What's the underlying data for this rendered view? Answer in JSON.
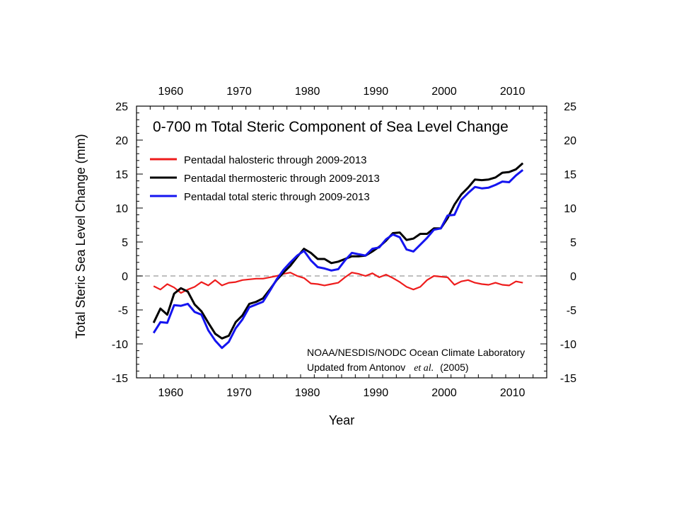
{
  "chart_data": {
    "type": "line",
    "title": "0-700 m Total Steric Component of Sea Level Change",
    "xlabel": "Year",
    "ylabel": "Total Steric Sea Level Change (mm)",
    "xlim": [
      1955,
      2015
    ],
    "ylim": [
      -15,
      25
    ],
    "x_ticks": [
      1960,
      1970,
      1980,
      1990,
      2000,
      2010
    ],
    "y_ticks": [
      -15,
      -10,
      -5,
      0,
      5,
      10,
      15,
      20,
      25
    ],
    "x_tick_labels": [
      "1960",
      "1970",
      "1980",
      "1990",
      "2000",
      "2010"
    ],
    "y_tick_labels": [
      "-15",
      "-10",
      "-5",
      "0",
      "5",
      "10",
      "15",
      "20",
      "25"
    ],
    "zero_line": "dashed",
    "grid": false,
    "legend_position": "top-left",
    "credit_line1": "NOAA/NESDIS/NODC Ocean Climate Laboratory",
    "credit_line2_prefix": "Updated from Antonov",
    "credit_line2_italic": "et al.",
    "credit_line2_suffix": "(2005)",
    "x": [
      1957.5,
      1958.5,
      1959.5,
      1960.5,
      1961.5,
      1962.5,
      1963.5,
      1964.5,
      1965.5,
      1966.5,
      1967.5,
      1968.5,
      1969.5,
      1970.5,
      1971.5,
      1972.5,
      1973.5,
      1974.5,
      1975.5,
      1976.5,
      1977.5,
      1978.5,
      1979.5,
      1980.5,
      1981.5,
      1982.5,
      1983.5,
      1984.5,
      1985.5,
      1986.5,
      1987.5,
      1988.5,
      1989.5,
      1990.5,
      1991.5,
      1992.5,
      1993.5,
      1994.5,
      1995.5,
      1996.5,
      1997.5,
      1998.5,
      1999.5,
      2000.5,
      2001.5,
      2002.5,
      2003.5,
      2004.5,
      2005.5,
      2006.5,
      2007.5,
      2008.5,
      2009.5,
      2010.5,
      2011.5
    ],
    "series": [
      {
        "name": "Pentadal halosteric through 2009-2013",
        "color": "#ee1c1c",
        "values": [
          -1.5,
          -2.0,
          -1.2,
          -1.7,
          -2.5,
          -2.0,
          -1.6,
          -0.9,
          -1.4,
          -0.6,
          -1.4,
          -1.0,
          -0.9,
          -0.6,
          -0.5,
          -0.4,
          -0.4,
          -0.2,
          0.0,
          0.3,
          0.5,
          0.0,
          -0.3,
          -1.1,
          -1.2,
          -1.4,
          -1.2,
          -1.0,
          -0.2,
          0.5,
          0.3,
          0.0,
          0.4,
          -0.2,
          0.2,
          -0.3,
          -0.9,
          -1.6,
          -2.0,
          -1.6,
          -0.6,
          0.0,
          -0.1,
          -0.2,
          -1.3,
          -0.8,
          -0.6,
          -1.0,
          -1.2,
          -1.3,
          -1.0,
          -1.3,
          -1.4,
          -0.8,
          -1.0
        ]
      },
      {
        "name": "Pentadal thermosteric through 2009-2013",
        "color": "#000000",
        "values": [
          -6.9,
          -4.8,
          -5.7,
          -2.6,
          -1.8,
          -2.3,
          -4.2,
          -5.2,
          -6.9,
          -8.5,
          -9.2,
          -8.8,
          -6.8,
          -5.8,
          -4.1,
          -3.8,
          -3.3,
          -2.0,
          -0.6,
          0.5,
          1.5,
          2.8,
          4.0,
          3.4,
          2.5,
          2.5,
          1.9,
          2.1,
          2.5,
          2.9,
          2.9,
          3.0,
          3.6,
          4.3,
          5.2,
          6.3,
          6.4,
          5.3,
          5.5,
          6.2,
          6.2,
          7.0,
          7.0,
          8.5,
          10.5,
          12.0,
          13.0,
          14.2,
          14.1,
          14.2,
          14.5,
          15.2,
          15.3,
          15.7,
          16.6
        ]
      },
      {
        "name": "Pentadal total steric through 2009-2013",
        "color": "#1414f0",
        "values": [
          -8.4,
          -6.8,
          -6.9,
          -4.3,
          -4.4,
          -4.1,
          -5.3,
          -5.7,
          -8.0,
          -9.5,
          -10.6,
          -9.7,
          -7.7,
          -6.4,
          -4.6,
          -4.2,
          -3.8,
          -2.2,
          -0.5,
          0.9,
          2.0,
          3.0,
          3.7,
          2.3,
          1.3,
          1.1,
          0.8,
          1.0,
          2.3,
          3.4,
          3.2,
          3.0,
          4.0,
          4.2,
          5.4,
          6.1,
          5.7,
          3.9,
          3.6,
          4.6,
          5.6,
          6.8,
          7.0,
          8.9,
          9.0,
          11.2,
          12.2,
          13.1,
          12.9,
          13.0,
          13.4,
          13.9,
          13.8,
          14.8,
          15.6
        ]
      }
    ]
  }
}
